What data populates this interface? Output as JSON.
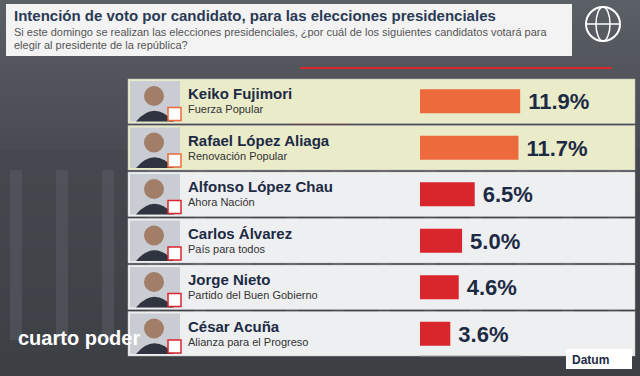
{
  "chart_data": {
    "type": "bar",
    "orientation": "horizontal",
    "title": "Intención de voto por candidato, para las elecciones presidenciales",
    "subtitle": "Si este domingo se realizan las elecciones presidenciales, ¿por cuál de los siguientes candidatos votará para elegir al presidente de la república?",
    "categories": [
      "Keiko Fujimori",
      "Rafael López Aliaga",
      "Alfonso López Chau",
      "Carlos Álvarez",
      "Jorge Nieto",
      "César Acuña"
    ],
    "parties": [
      "Fuerza Popular",
      "Renovación Popular",
      "Ahora Nación",
      "País para todos",
      "Partido del Buen Gobierno",
      "Alianza para el Progreso"
    ],
    "values": [
      11.9,
      11.7,
      6.5,
      5.0,
      4.6,
      3.6
    ],
    "value_labels": [
      "11.9%",
      "11.7%",
      "6.5%",
      "5.0%",
      "4.6%",
      "3.6%"
    ],
    "colors": [
      "#ec6a3c",
      "#ec6a3c",
      "#d8262c",
      "#d8262c",
      "#d8262c",
      "#d8262c"
    ],
    "xlim": [
      0,
      12
    ],
    "data_labels": true,
    "tick_labels": false,
    "grid": false,
    "annotations": [
      "cuarto poder",
      "Datum"
    ]
  }
}
